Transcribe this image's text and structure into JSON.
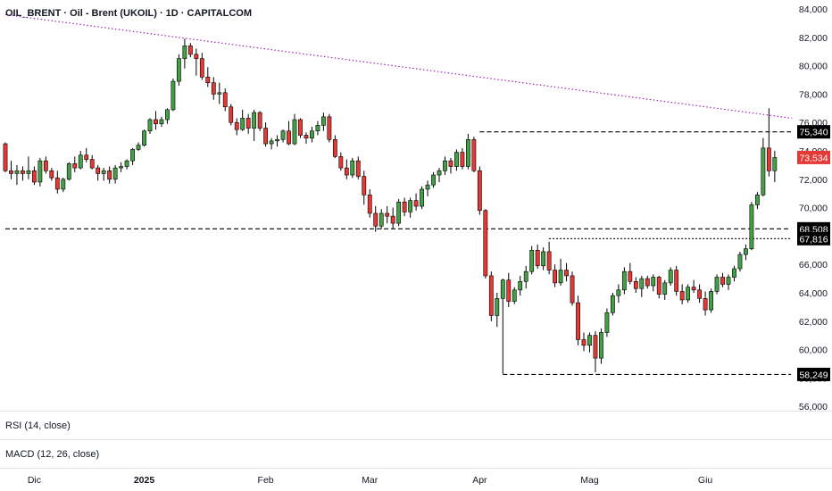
{
  "chart_title": "OIL_BRENT · Oil - Brent (UKOIL) · 1D · CAPITALCOM",
  "panes": {
    "rsi_label": "RSI (14, close)",
    "macd_label": "MACD (12, 26, close)"
  },
  "colors": {
    "up": "#43a047",
    "down": "#e53935",
    "trendline": "#9c27b0",
    "level_line": "#000000",
    "current_price_tag": "#e53935",
    "level_tag": "#000000"
  },
  "chart_data": {
    "type": "candlestick",
    "ylim": [
      56000,
      84000
    ],
    "y_ticks": [
      "84,000",
      "82,000",
      "80,000",
      "78,000",
      "76,000",
      "74,000",
      "72,000",
      "70,000",
      "68,000",
      "66,000",
      "64,000",
      "62,000",
      "60,000",
      "58,000",
      "56,000"
    ],
    "x_ticks": [
      {
        "label": "Dic",
        "bar": 5,
        "bold": false
      },
      {
        "label": "2025",
        "bar": 24,
        "bold": true
      },
      {
        "label": "Feb",
        "bar": 45,
        "bold": false
      },
      {
        "label": "Mar",
        "bar": 63,
        "bold": false
      },
      {
        "label": "Apr",
        "bar": 82,
        "bold": false
      },
      {
        "label": "Mag",
        "bar": 101,
        "bold": false
      },
      {
        "label": "Giu",
        "bar": 121,
        "bold": false
      }
    ],
    "candles": [
      [
        74.5,
        74.6,
        72.5,
        72.6
      ],
      [
        72.6,
        73.3,
        72.0,
        72.4
      ],
      [
        72.4,
        73.0,
        71.6,
        72.6
      ],
      [
        72.6,
        72.9,
        71.9,
        72.4
      ],
      [
        72.4,
        73.6,
        72.0,
        72.6
      ],
      [
        72.6,
        72.9,
        71.6,
        71.8
      ],
      [
        71.8,
        73.5,
        71.5,
        73.3
      ],
      [
        73.3,
        73.6,
        72.4,
        72.6
      ],
      [
        72.6,
        72.8,
        71.9,
        72.1
      ],
      [
        72.1,
        72.6,
        71.0,
        71.3
      ],
      [
        71.3,
        72.1,
        71.1,
        72.0
      ],
      [
        72.0,
        73.2,
        71.9,
        73.1
      ],
      [
        73.1,
        73.6,
        72.5,
        72.8
      ],
      [
        72.8,
        74.0,
        72.7,
        73.7
      ],
      [
        73.7,
        74.2,
        73.2,
        73.4
      ],
      [
        73.4,
        73.7,
        72.7,
        72.8
      ],
      [
        72.8,
        73.0,
        71.9,
        72.4
      ],
      [
        72.4,
        72.8,
        71.9,
        72.6
      ],
      [
        72.6,
        72.9,
        71.7,
        72.0
      ],
      [
        72.0,
        73.0,
        71.7,
        72.8
      ],
      [
        72.8,
        73.2,
        72.5,
        72.9
      ],
      [
        72.9,
        73.4,
        72.7,
        73.3
      ],
      [
        73.3,
        74.2,
        73.0,
        74.1
      ],
      [
        74.1,
        74.6,
        74.0,
        74.4
      ],
      [
        74.4,
        75.5,
        74.3,
        75.4
      ],
      [
        75.4,
        76.3,
        75.2,
        76.2
      ],
      [
        76.2,
        76.8,
        75.5,
        75.9
      ],
      [
        75.9,
        76.4,
        75.7,
        76.2
      ],
      [
        76.2,
        77.0,
        75.9,
        76.9
      ],
      [
        76.9,
        79.1,
        76.8,
        78.9
      ],
      [
        78.9,
        80.8,
        78.6,
        80.5
      ],
      [
        80.5,
        81.9,
        79.8,
        81.4
      ],
      [
        81.4,
        81.6,
        80.6,
        80.8
      ],
      [
        80.8,
        81.2,
        79.3,
        80.5
      ],
      [
        80.5,
        80.9,
        79.0,
        79.2
      ],
      [
        79.2,
        79.9,
        78.5,
        78.8
      ],
      [
        78.8,
        79.2,
        77.6,
        78.0
      ],
      [
        78.0,
        78.8,
        77.3,
        78.1
      ],
      [
        78.1,
        78.4,
        76.8,
        77.1
      ],
      [
        77.1,
        77.3,
        75.8,
        76.0
      ],
      [
        76.0,
        76.3,
        75.1,
        75.5
      ],
      [
        75.5,
        76.9,
        75.4,
        76.3
      ],
      [
        76.3,
        76.6,
        75.2,
        75.6
      ],
      [
        75.6,
        76.9,
        74.7,
        76.7
      ],
      [
        76.7,
        76.8,
        75.4,
        75.6
      ],
      [
        75.6,
        76.0,
        74.3,
        74.5
      ],
      [
        74.5,
        74.9,
        74.1,
        74.7
      ],
      [
        74.7,
        75.1,
        74.3,
        74.8
      ],
      [
        74.8,
        75.5,
        74.6,
        75.4
      ],
      [
        75.4,
        76.1,
        74.4,
        74.5
      ],
      [
        74.5,
        76.6,
        74.4,
        76.2
      ],
      [
        76.2,
        76.3,
        74.9,
        75.1
      ],
      [
        75.1,
        75.3,
        74.5,
        74.9
      ],
      [
        74.9,
        75.7,
        74.6,
        75.4
      ],
      [
        75.4,
        76.1,
        75.1,
        75.8
      ],
      [
        75.8,
        76.7,
        75.4,
        76.4
      ],
      [
        76.4,
        76.6,
        74.6,
        74.8
      ],
      [
        74.8,
        75.1,
        73.5,
        73.6
      ],
      [
        73.6,
        73.9,
        72.6,
        72.8
      ],
      [
        72.8,
        73.4,
        72.0,
        72.3
      ],
      [
        72.3,
        73.5,
        72.1,
        73.3
      ],
      [
        73.3,
        73.6,
        72.0,
        72.2
      ],
      [
        72.2,
        72.6,
        70.2,
        70.9
      ],
      [
        70.9,
        71.3,
        69.3,
        69.6
      ],
      [
        69.6,
        70.1,
        68.3,
        68.7
      ],
      [
        68.7,
        69.9,
        68.5,
        69.6
      ],
      [
        69.6,
        70.1,
        68.9,
        69.4
      ],
      [
        69.4,
        70.0,
        68.5,
        68.9
      ],
      [
        68.9,
        70.6,
        68.7,
        70.4
      ],
      [
        70.4,
        70.7,
        69.4,
        69.7
      ],
      [
        69.7,
        70.7,
        69.3,
        70.5
      ],
      [
        70.5,
        71.0,
        69.8,
        70.1
      ],
      [
        70.1,
        71.5,
        69.9,
        71.3
      ],
      [
        71.3,
        71.9,
        70.8,
        71.6
      ],
      [
        71.6,
        72.5,
        71.4,
        72.3
      ],
      [
        72.3,
        72.8,
        71.8,
        72.6
      ],
      [
        72.6,
        73.6,
        72.3,
        73.3
      ],
      [
        73.3,
        73.5,
        72.4,
        72.9
      ],
      [
        72.9,
        74.1,
        72.6,
        73.9
      ],
      [
        73.9,
        74.2,
        72.7,
        72.9
      ],
      [
        72.9,
        75.2,
        72.7,
        74.8
      ],
      [
        74.8,
        75.0,
        72.5,
        72.6
      ],
      [
        72.6,
        72.9,
        69.5,
        69.8
      ],
      [
        69.8,
        69.9,
        65.0,
        65.2
      ],
      [
        65.2,
        65.5,
        62.0,
        62.4
      ],
      [
        62.4,
        64.0,
        61.6,
        63.6
      ],
      [
        63.6,
        65.0,
        58.3,
        64.9
      ],
      [
        64.9,
        65.4,
        63.0,
        63.4
      ],
      [
        63.4,
        64.4,
        63.2,
        64.2
      ],
      [
        64.2,
        65.2,
        63.8,
        64.8
      ],
      [
        64.8,
        65.9,
        64.3,
        65.5
      ],
      [
        65.5,
        67.3,
        65.3,
        67.0
      ],
      [
        67.0,
        67.4,
        65.7,
        65.9
      ],
      [
        65.9,
        67.2,
        65.6,
        66.9
      ],
      [
        66.9,
        67.6,
        65.3,
        65.6
      ],
      [
        65.6,
        66.0,
        64.4,
        64.7
      ],
      [
        64.7,
        66.4,
        64.5,
        65.6
      ],
      [
        65.6,
        66.1,
        64.8,
        65.2
      ],
      [
        65.2,
        65.5,
        63.1,
        63.3
      ],
      [
        63.3,
        63.8,
        60.3,
        60.7
      ],
      [
        60.7,
        61.2,
        59.9,
        60.3
      ],
      [
        60.3,
        61.2,
        59.8,
        61.0
      ],
      [
        61.0,
        61.3,
        58.4,
        59.4
      ],
      [
        59.4,
        61.5,
        59.0,
        61.2
      ],
      [
        61.2,
        62.9,
        60.9,
        62.6
      ],
      [
        62.6,
        64.0,
        62.4,
        63.8
      ],
      [
        63.8,
        64.6,
        63.3,
        64.2
      ],
      [
        64.2,
        65.8,
        63.9,
        65.5
      ],
      [
        65.5,
        66.1,
        64.6,
        64.8
      ],
      [
        64.8,
        65.1,
        64.0,
        64.3
      ],
      [
        64.3,
        65.2,
        63.7,
        65.0
      ],
      [
        65.0,
        65.2,
        64.3,
        64.5
      ],
      [
        64.5,
        65.3,
        64.1,
        65.1
      ],
      [
        65.1,
        65.2,
        63.6,
        63.9
      ],
      [
        63.9,
        64.9,
        63.5,
        64.7
      ],
      [
        64.7,
        65.8,
        64.5,
        65.6
      ],
      [
        65.6,
        65.9,
        63.8,
        64.1
      ],
      [
        64.1,
        64.6,
        63.2,
        63.5
      ],
      [
        63.5,
        64.6,
        63.3,
        64.4
      ],
      [
        64.4,
        64.9,
        64.0,
        64.2
      ],
      [
        64.2,
        64.6,
        63.3,
        63.6
      ],
      [
        63.6,
        64.1,
        62.4,
        62.8
      ],
      [
        62.8,
        64.3,
        62.6,
        64.1
      ],
      [
        64.1,
        65.3,
        63.9,
        65.1
      ],
      [
        65.1,
        65.4,
        64.4,
        64.6
      ],
      [
        64.6,
        65.3,
        64.2,
        65.1
      ],
      [
        65.1,
        65.9,
        64.8,
        65.7
      ],
      [
        65.7,
        66.9,
        65.5,
        66.7
      ],
      [
        66.7,
        67.4,
        66.3,
        67.1
      ],
      [
        67.1,
        70.4,
        67.0,
        70.2
      ],
      [
        70.2,
        71.1,
        69.9,
        70.9
      ],
      [
        70.9,
        74.9,
        70.8,
        74.2
      ],
      [
        74.2,
        77.0,
        72.2,
        72.6
      ],
      [
        72.6,
        74.0,
        71.8,
        73.53
      ]
    ],
    "annotations": {
      "trendline_label": "",
      "levels": [
        {
          "value": 75340,
          "label": "75,340",
          "from_bar": 82
        },
        {
          "value": 68508,
          "label": "68,508",
          "from_bar": 0
        },
        {
          "value": 67816,
          "label": "67,816",
          "from_bar": 94
        },
        {
          "value": 58249,
          "label": "58,249",
          "from_bar": 86
        }
      ],
      "current_price": {
        "value": 73534,
        "label": "73,534"
      }
    },
    "trendline": {
      "points": [
        [
          0,
          83.6
        ],
        [
          136,
          76.3
        ]
      ]
    },
    "grid": false
  }
}
